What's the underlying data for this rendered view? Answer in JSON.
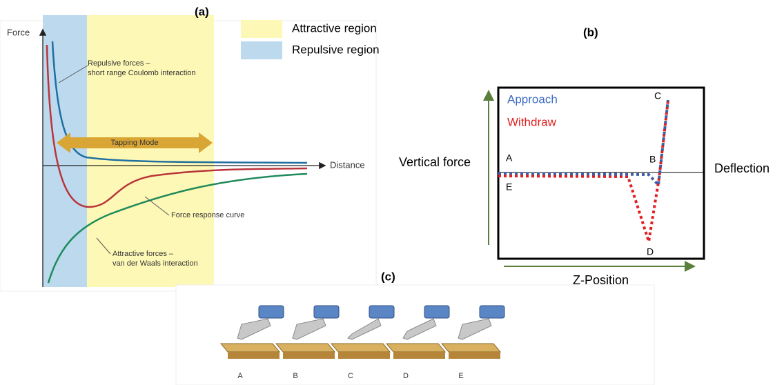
{
  "panel_a": {
    "label": "(a)",
    "y_axis_label": "Force",
    "x_axis_label": "Distance",
    "legend": [
      "Attractive region",
      "Repulsive region"
    ],
    "annotations": {
      "repulsive": [
        "Repulsive forces –",
        "short range Coulomb interaction"
      ],
      "tapping": "Tapping Mode",
      "response": "Force response curve",
      "attractive": [
        "Attractive forces –",
        "van der Waals interaction"
      ]
    }
  },
  "panel_b": {
    "label": "(b)",
    "series": [
      "Approach",
      "Withdraw"
    ],
    "y_axis_label": "Vertical force",
    "x_axis_label": "Z-Position",
    "right_label": "Deflection",
    "points": [
      "A",
      "B",
      "C",
      "D",
      "E"
    ]
  },
  "panel_c": {
    "label": "(c)",
    "steps": [
      "A",
      "B",
      "C",
      "D",
      "E"
    ]
  }
}
